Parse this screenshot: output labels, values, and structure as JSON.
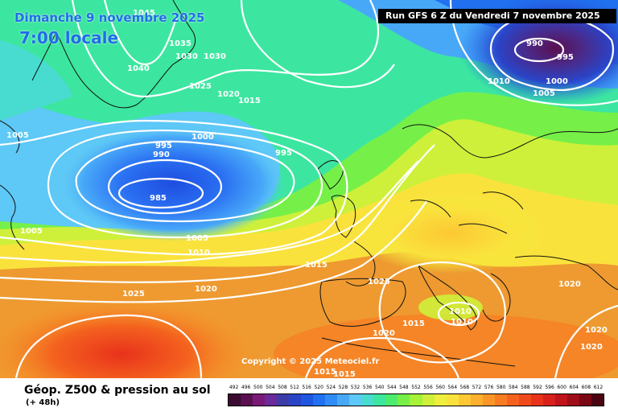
{
  "header": {
    "date": "Dimanche 9 novembre 2025",
    "local_time": "7:00 locale",
    "run": "Run GFS 6 Z du Vendredi 7 novembre 2025"
  },
  "copyright": "Copyright © 2025 Meteociel.fr",
  "footer": {
    "title": "Géop. Z500 & pression au sol",
    "subtitle": "(+ 48h)"
  },
  "scale": {
    "values": [
      "492",
      "496",
      "500",
      "504",
      "508",
      "512",
      "516",
      "520",
      "524",
      "528",
      "532",
      "536",
      "540",
      "544",
      "548",
      "552",
      "556",
      "560",
      "564",
      "568",
      "572",
      "576",
      "580",
      "584",
      "588",
      "592",
      "596",
      "600",
      "604",
      "608",
      "612"
    ],
    "colors": [
      "#3a0a30",
      "#5a1050",
      "#7a1a78",
      "#6a2a9a",
      "#3c3ca8",
      "#2a44c8",
      "#1e56e0",
      "#2070f0",
      "#2f8cf6",
      "#48a8f8",
      "#5ec8f6",
      "#48dcd0",
      "#3ce6a0",
      "#4cec6c",
      "#76f048",
      "#a6f238",
      "#cef03a",
      "#eeee3c",
      "#fae23c",
      "#fcc834",
      "#fcb02e",
      "#fa9628",
      "#f87c22",
      "#f4621e",
      "#f04a1c",
      "#e8321c",
      "#d8201c",
      "#c0141c",
      "#a00c18",
      "#7a0814",
      "#4a0410"
    ]
  },
  "isobar_labels": [
    "1045",
    "1035",
    "1030",
    "1030",
    "1040",
    "1025",
    "1020",
    "1015",
    "1005",
    "995",
    "990",
    "1000",
    "995",
    "985",
    "1005",
    "1005",
    "1010",
    "1015",
    "1020",
    "1025",
    "1025",
    "1020",
    "1015",
    "1010",
    "1010",
    "1015",
    "1015",
    "1020",
    "1020",
    "1020",
    "990",
    "995",
    "1010",
    "1000",
    "1005"
  ],
  "icons": {
    "stage": "weather-map"
  }
}
